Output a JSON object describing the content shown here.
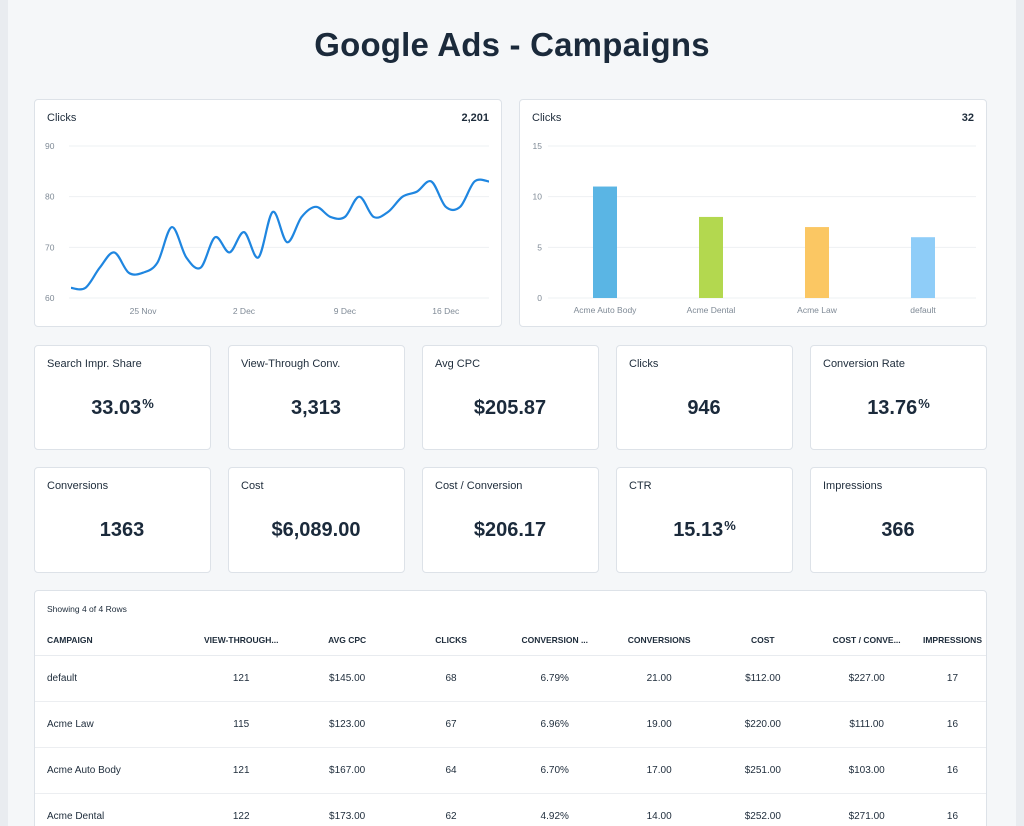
{
  "page": {
    "title": "Google Ads - Campaigns"
  },
  "line_card": {
    "label": "Clicks",
    "total": "2,201"
  },
  "bar_card": {
    "label": "Clicks",
    "total": "32"
  },
  "chart_data": [
    {
      "type": "line",
      "title": "Clicks",
      "x": [
        "2021-11-20",
        "2021-11-21",
        "2021-11-22",
        "2021-11-23",
        "2021-11-24",
        "2021-11-25",
        "2021-11-26",
        "2021-11-27",
        "2021-11-28",
        "2021-11-29",
        "2021-11-30",
        "2021-12-01",
        "2021-12-02",
        "2021-12-03",
        "2021-12-04",
        "2021-12-05",
        "2021-12-06",
        "2021-12-07",
        "2021-12-08",
        "2021-12-09",
        "2021-12-10",
        "2021-12-11",
        "2021-12-12",
        "2021-12-13",
        "2021-12-14",
        "2021-12-15",
        "2021-12-16",
        "2021-12-17",
        "2021-12-18",
        "2021-12-19"
      ],
      "xticks": [
        "25 Nov",
        "2 Dec",
        "9 Dec",
        "16 Dec"
      ],
      "xtick_dates": [
        "2021-11-25",
        "2021-12-02",
        "2021-12-09",
        "2021-12-16"
      ],
      "series": [
        {
          "values": [
            62,
            62,
            66,
            69,
            65,
            65,
            67,
            74,
            68,
            66,
            72,
            69,
            73,
            68,
            77,
            71,
            76,
            78,
            76,
            76,
            80,
            76,
            77,
            80,
            81,
            83,
            78,
            78,
            83,
            83
          ]
        }
      ],
      "ylim": [
        60,
        90
      ],
      "yticks": [
        60,
        70,
        80,
        90
      ],
      "grid": true,
      "color": "#1f86e0"
    },
    {
      "type": "bar",
      "title": "Clicks",
      "categories": [
        "Acme Auto Body",
        "Acme Dental",
        "Acme Law",
        "default"
      ],
      "values": [
        11,
        8,
        7,
        6
      ],
      "colors": [
        "#5ab5e4",
        "#b3d84f",
        "#fbc763",
        "#8fcdf8"
      ],
      "ylim": [
        0,
        15
      ],
      "yticks": [
        0,
        5,
        10,
        15
      ],
      "grid": true
    }
  ],
  "kpis": [
    {
      "label": "Search Impr. Share",
      "value": "33.03",
      "suffix": "%"
    },
    {
      "label": "View-Through Conv.",
      "value": "3,313",
      "suffix": ""
    },
    {
      "label": "Avg CPC",
      "value": "$205.87",
      "suffix": ""
    },
    {
      "label": "Clicks",
      "value": "946",
      "suffix": ""
    },
    {
      "label": "Conversion Rate",
      "value": "13.76",
      "suffix": "%"
    },
    {
      "label": "Conversions",
      "value": "1363",
      "suffix": ""
    },
    {
      "label": "Cost",
      "value": "$6,089.00",
      "suffix": ""
    },
    {
      "label": "Cost / Conversion",
      "value": "$206.17",
      "suffix": ""
    },
    {
      "label": "CTR",
      "value": "15.13",
      "suffix": "%"
    },
    {
      "label": "Impressions",
      "value": "366",
      "suffix": ""
    }
  ],
  "table": {
    "caption": "Showing 4 of 4 Rows",
    "columns": [
      "CAMPAIGN",
      "VIEW-THROUGH...",
      "AVG CPC",
      "CLICKS",
      "CONVERSION ...",
      "CONVERSIONS",
      "COST",
      "COST / CONVE...",
      "IMPRESSIONS"
    ],
    "rows": [
      [
        "default",
        "121",
        "$145.00",
        "68",
        "6.79%",
        "21.00",
        "$112.00",
        "$227.00",
        "17"
      ],
      [
        "Acme Law",
        "115",
        "$123.00",
        "67",
        "6.96%",
        "19.00",
        "$220.00",
        "$111.00",
        "16"
      ],
      [
        "Acme Auto Body",
        "121",
        "$167.00",
        "64",
        "6.70%",
        "17.00",
        "$251.00",
        "$103.00",
        "16"
      ],
      [
        "Acme Dental",
        "122",
        "$173.00",
        "62",
        "4.92%",
        "14.00",
        "$252.00",
        "$271.00",
        "16"
      ]
    ]
  }
}
